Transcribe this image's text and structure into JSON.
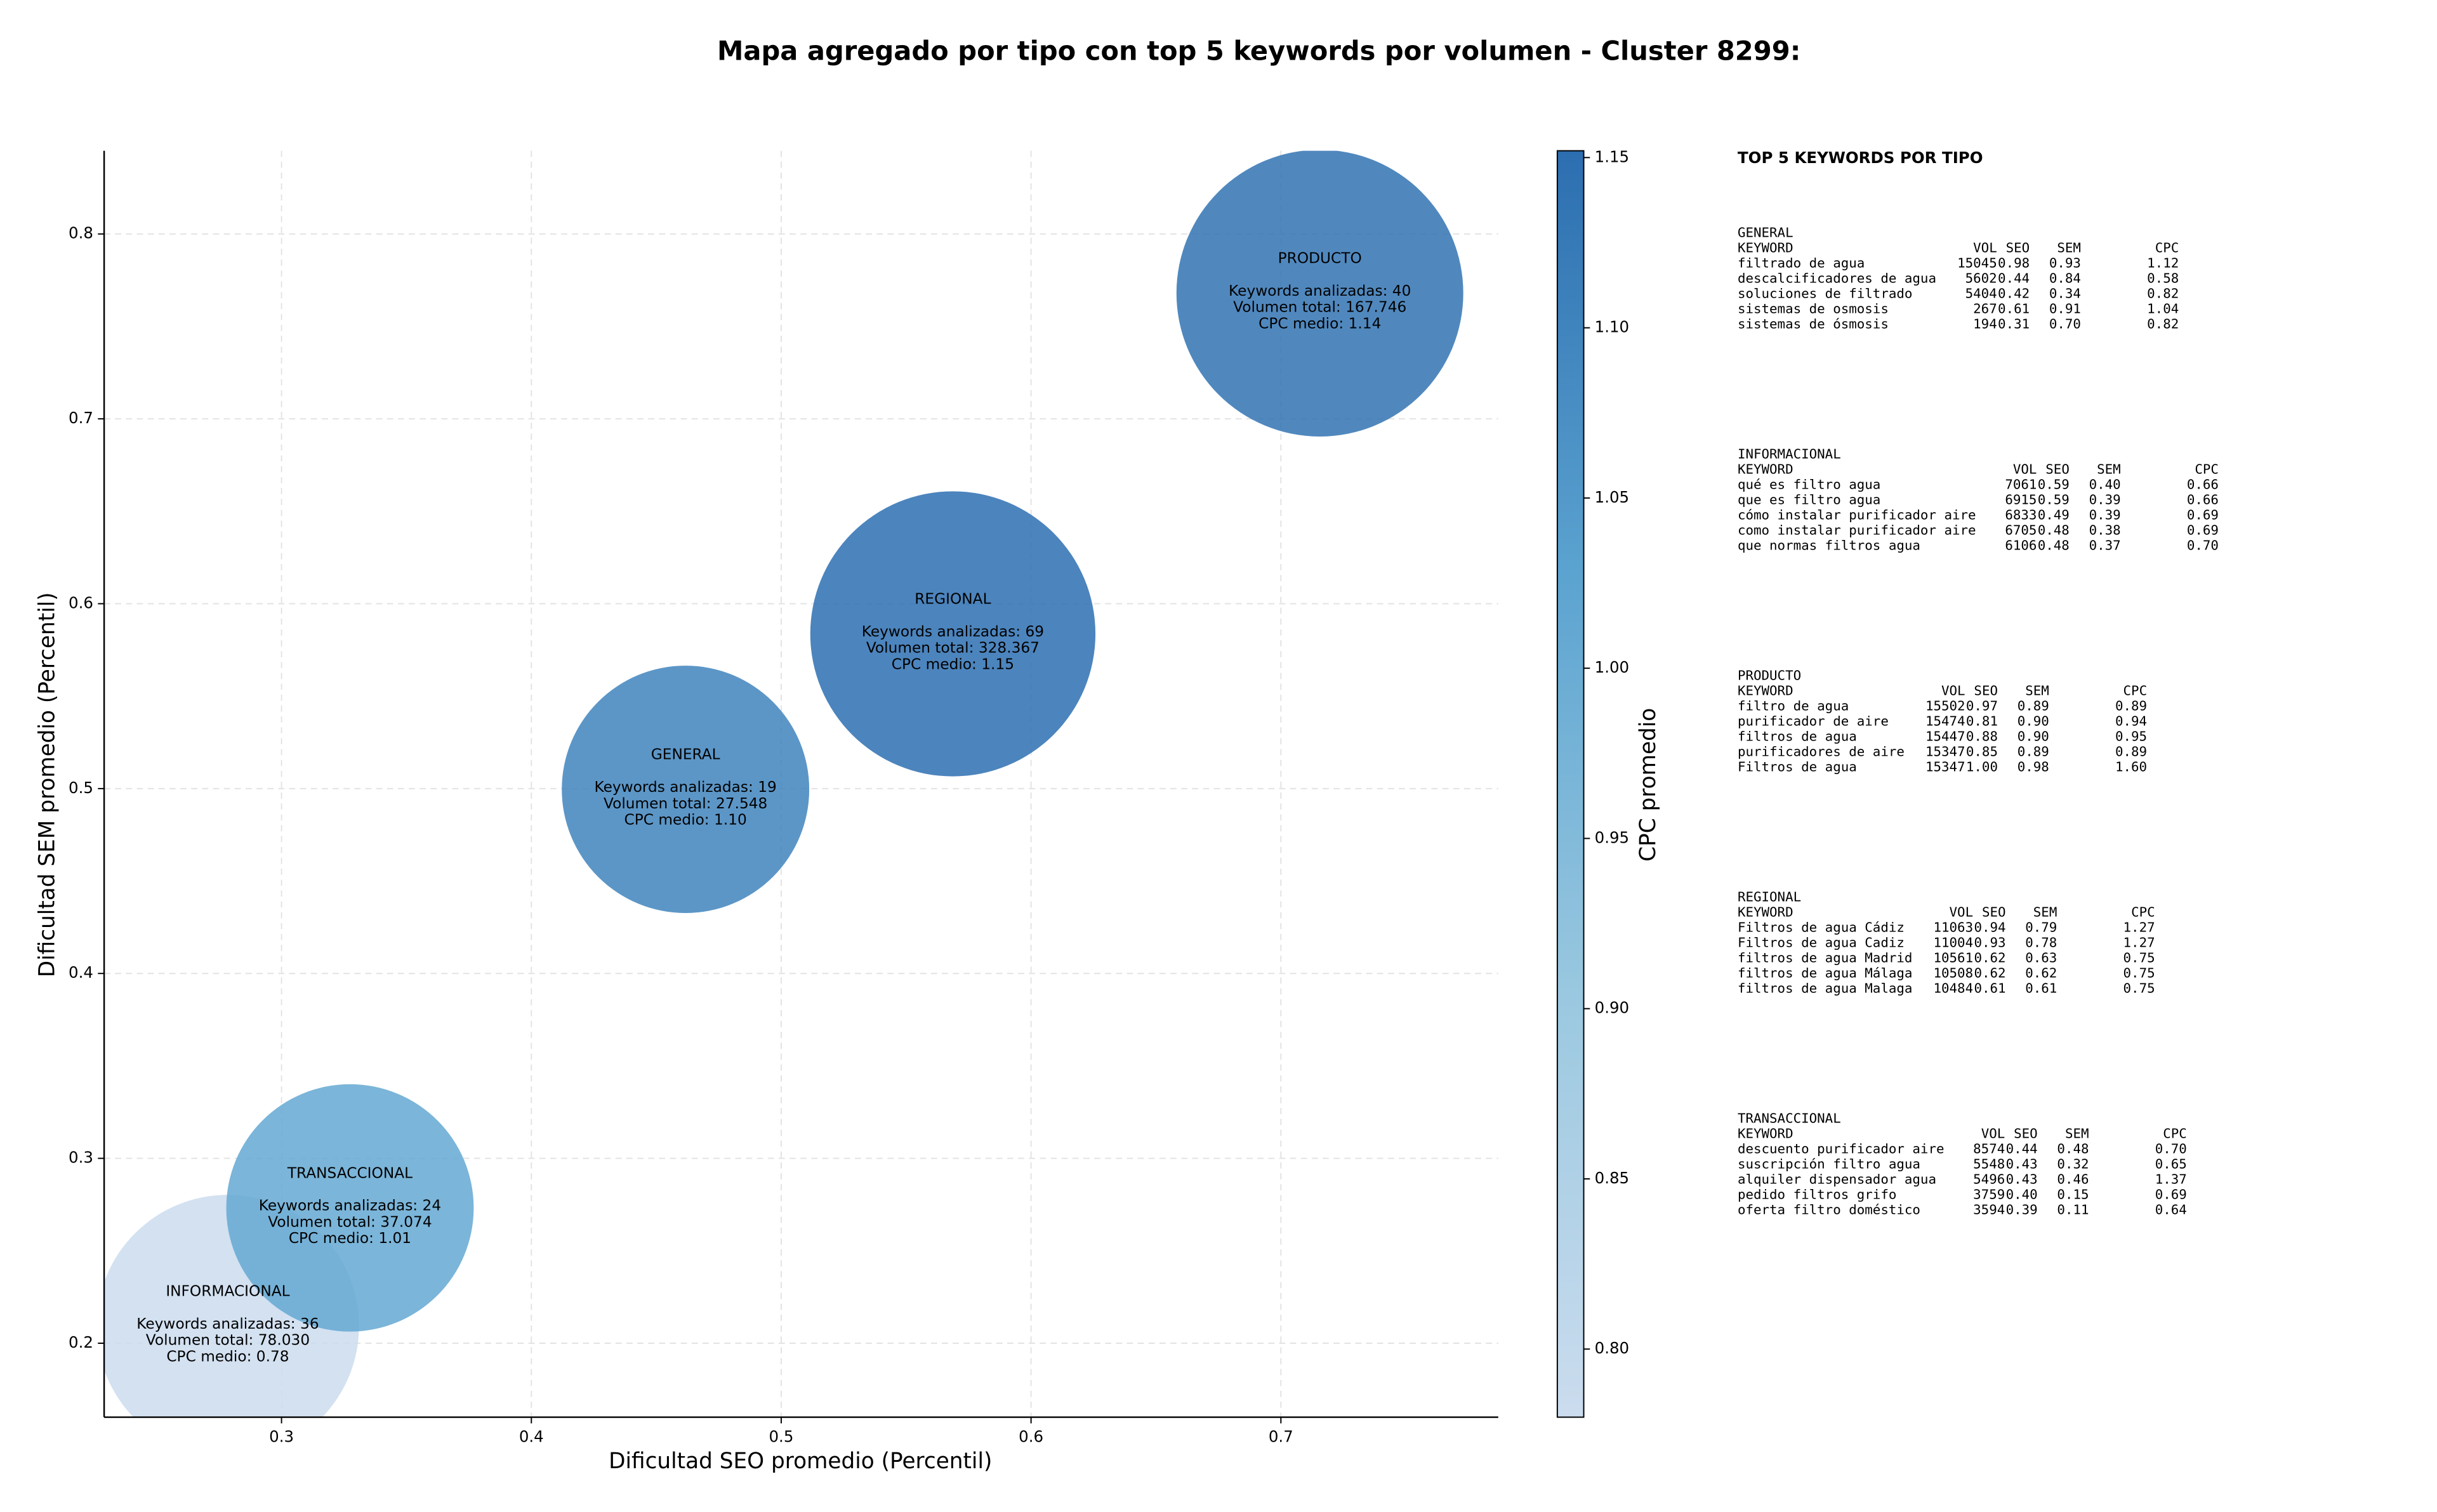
{
  "chart_data": {
    "type": "bubble",
    "title": "Mapa agregado por tipo con top 5 keywords por volumen - Cluster 8299:",
    "xlabel": "Dificultad SEO promedio (Percentil)",
    "ylabel": "Dificultad SEM promedio (Percentil)",
    "categories": [
      "INFORMACIONAL",
      "TRANSACCIONAL",
      "GENERAL",
      "REGIONAL",
      "PRODUCTO"
    ],
    "x": [
      0.2785,
      0.3274,
      0.4617,
      0.5687,
      0.7156
    ],
    "values": [
      0.2093,
      0.2732,
      0.4996,
      0.5837,
      0.768
    ],
    "sizes": [
      7200,
      6400,
      6400,
      8500,
      8600
    ],
    "color_values": [
      0.78,
      1.01,
      1.1,
      1.15,
      1.14
    ],
    "annotations": [
      [
        "Keywords analizadas: 36",
        "Volumen total: 78.030",
        "CPC medio: 0.78"
      ],
      [
        "Keywords analizadas: 24",
        "Volumen total: 37.074",
        "CPC medio: 1.01"
      ],
      [
        "Keywords analizadas: 19",
        "Volumen total: 27.548",
        "CPC medio: 1.10"
      ],
      [
        "Keywords analizadas: 69",
        "Volumen total: 328.367",
        "CPC medio: 1.15"
      ],
      [
        "Keywords analizadas: 40",
        "Volumen total: 167.746",
        "CPC medio: 1.14"
      ]
    ],
    "alpha": 0.85,
    "xlim": [
      0.229,
      0.787
    ],
    "ylim": [
      0.16,
      0.845
    ],
    "xticks": [
      0.3,
      0.4,
      0.5,
      0.6,
      0.7
    ],
    "yticks": [
      0.2,
      0.3,
      0.4,
      0.5,
      0.6,
      0.7,
      0.8
    ],
    "grid": true,
    "colorbar": {
      "label": "CPC promedio",
      "lim": [
        0.78,
        1.152
      ],
      "ticks": [
        {
          "value": 0.8,
          "label": "0.80"
        },
        0.85,
        {
          "value": 0.9,
          "label": "0.90"
        },
        0.95,
        {
          "value": 1.0,
          "label": "1.00"
        },
        1.05,
        {
          "value": 1.1,
          "label": "1.10"
        },
        1.15
      ],
      "colors": [
        "#cbdcee",
        "#9ac8e0",
        "#5ba3d0",
        "#2c6eb0"
      ]
    },
    "side_panel": {
      "title": "TOP 5 KEYWORDS POR TIPO",
      "groups": [
        {
          "name": "GENERAL",
          "columns": [
            "KEYWORD",
            "VOL",
            "SEO",
            "SEM",
            "CPC"
          ],
          "rows": [
            [
              "filtrado de agua",
              "15045",
              "0.98",
              "0.93",
              "1.12"
            ],
            [
              "descalcificadores de agua",
              "5602",
              "0.44",
              "0.84",
              "0.58"
            ],
            [
              "soluciones de filtrado",
              "5404",
              "0.42",
              "0.34",
              "0.82"
            ],
            [
              "sistemas de osmosis",
              "267",
              "0.61",
              "0.91",
              "1.04"
            ],
            [
              "sistemas de ósmosis",
              "194",
              "0.31",
              "0.70",
              "0.82"
            ]
          ]
        },
        {
          "name": "INFORMACIONAL",
          "columns": [
            "KEYWORD",
            "VOL",
            "SEO",
            "SEM",
            "CPC"
          ],
          "rows": [
            [
              "qué es filtro agua",
              "7061",
              "0.59",
              "0.40",
              "0.66"
            ],
            [
              "que es filtro agua",
              "6915",
              "0.59",
              "0.39",
              "0.66"
            ],
            [
              "cómo instalar purificador aire",
              "6833",
              "0.49",
              "0.39",
              "0.69"
            ],
            [
              "como instalar purificador aire",
              "6705",
              "0.48",
              "0.38",
              "0.69"
            ],
            [
              "que normas filtros agua",
              "6106",
              "0.48",
              "0.37",
              "0.70"
            ]
          ]
        },
        {
          "name": "PRODUCTO",
          "columns": [
            "KEYWORD",
            "VOL",
            "SEO",
            "SEM",
            "CPC"
          ],
          "rows": [
            [
              "filtro de agua",
              "15502",
              "0.97",
              "0.89",
              "0.89"
            ],
            [
              "purificador de aire",
              "15474",
              "0.81",
              "0.90",
              "0.94"
            ],
            [
              "filtros de agua",
              "15447",
              "0.88",
              "0.90",
              "0.95"
            ],
            [
              "purificadores de aire",
              "15347",
              "0.85",
              "0.89",
              "0.89"
            ],
            [
              "Filtros de agua",
              "15347",
              "1.00",
              "0.98",
              "1.60"
            ]
          ]
        },
        {
          "name": "REGIONAL",
          "columns": [
            "KEYWORD",
            "VOL",
            "SEO",
            "SEM",
            "CPC"
          ],
          "rows": [
            [
              "Filtros de agua Cádiz",
              "11063",
              "0.94",
              "0.79",
              "1.27"
            ],
            [
              "Filtros de agua Cadiz",
              "11004",
              "0.93",
              "0.78",
              "1.27"
            ],
            [
              "filtros de agua Madrid",
              "10561",
              "0.62",
              "0.63",
              "0.75"
            ],
            [
              "filtros de agua Málaga",
              "10508",
              "0.62",
              "0.62",
              "0.75"
            ],
            [
              "filtros de agua Malaga",
              "10484",
              "0.61",
              "0.61",
              "0.75"
            ]
          ]
        },
        {
          "name": "TRANSACCIONAL",
          "columns": [
            "KEYWORD",
            "VOL",
            "SEO",
            "SEM",
            "CPC"
          ],
          "rows": [
            [
              "descuento purificador aire",
              "8574",
              "0.44",
              "0.48",
              "0.70"
            ],
            [
              "suscripción filtro agua",
              "5548",
              "0.43",
              "0.32",
              "0.65"
            ],
            [
              "alquiler dispensador agua",
              "5496",
              "0.43",
              "0.46",
              "1.37"
            ],
            [
              "pedido filtros grifo",
              "3759",
              "0.40",
              "0.15",
              "0.69"
            ],
            [
              "oferta filtro doméstico",
              "3594",
              "0.39",
              "0.11",
              "0.64"
            ]
          ]
        }
      ]
    }
  }
}
